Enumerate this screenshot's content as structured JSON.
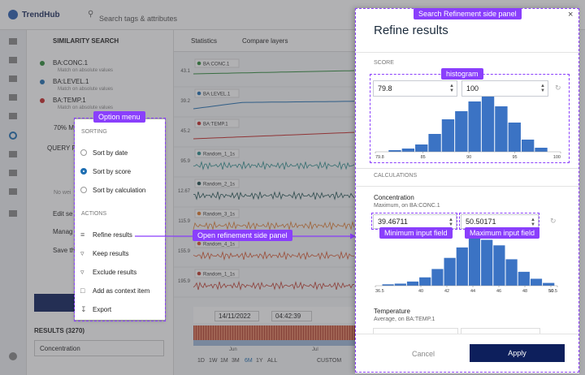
{
  "app": {
    "brand": "TrendHub",
    "search": "Search tags & attributes",
    "sidebar": {
      "title": "SIMILARITY SEARCH",
      "tags": [
        {
          "name": "BA:CONC.1",
          "note": "Match on absolute values",
          "color": "#2e8b3a"
        },
        {
          "name": "BA:LEVEL.1",
          "note": "Match on absolute values",
          "color": "#1f6fb2"
        },
        {
          "name": "BA:TEMP.1",
          "note": "Match on absolute values",
          "color": "#c62828"
        }
      ],
      "match": "70% M",
      "query": "QUERY P",
      "weights": "No wei",
      "links": [
        "Edit se",
        "Manag",
        "Save th"
      ],
      "results": "RESULTS (3270)",
      "sort_field": "Concentration"
    },
    "toolbar": {
      "statistics": "Statistics",
      "compare": "Compare layers"
    },
    "trends": [
      {
        "label": "BA:CONC.1",
        "tick": 43.1,
        "color": "#2e8b3a"
      },
      {
        "label": "BA:LEVEL.1",
        "tick": 39.2,
        "color": "#1f6fb2"
      },
      {
        "label": "BA:TEMP.1",
        "tick": 45.2,
        "color": "#c62828"
      },
      {
        "label": "Random_1_1s",
        "tick": 95.9,
        "color": "#2a8c8c"
      },
      {
        "label": "Random_2_1s",
        "tick": 12.67,
        "color": "#1d4f4f"
      },
      {
        "label": "Random_3_1s",
        "tick": 115.9,
        "color": "#e07a2e"
      },
      {
        "label": "Random_4_1s",
        "tick": 155.9,
        "color": "#d9542b"
      },
      {
        "label": "Random_1_1s",
        "tick": 195.9,
        "color": "#c0392b"
      }
    ],
    "timebar": {
      "date": "14/11/2022",
      "time": "04:42:39",
      "months": [
        "Jun",
        "Jul"
      ],
      "ranges": [
        "1D",
        "1W",
        "1M",
        "3M",
        "6M",
        "1Y",
        "ALL"
      ],
      "custom": "CUSTOM"
    }
  },
  "option_menu": {
    "sorting": "SORTING",
    "sort_options": [
      "Sort by date",
      "Sort by score",
      "Sort by calculation"
    ],
    "actions": "ACTIONS",
    "action_items": [
      "Refine results",
      "Keep results",
      "Exclude results",
      "Add as context item",
      "Export"
    ]
  },
  "panel": {
    "title": "Refine results",
    "score": {
      "label": "SCORE",
      "min": 79.8,
      "max": 100,
      "histogram": {
        "bins": [
          81.2,
          82.65,
          84.1,
          85.55,
          87.0,
          88.45,
          89.9,
          91.35,
          92.8,
          94.25,
          95.7,
          97.15,
          98.6
        ],
        "counts": [
          2,
          4,
          9,
          22,
          40,
          50,
          62,
          68,
          56,
          36,
          15,
          5
        ],
        "xlim": [
          79.8,
          100
        ],
        "xticks": [
          79.8,
          85,
          90,
          95,
          100
        ]
      }
    },
    "calculations": "CALCULATIONS",
    "concentration": {
      "name": "Concentration",
      "desc": "Maximum, on BA:CONC.1",
      "min": 39.46711,
      "max": 50.50171,
      "histogram": {
        "bins": [
          37.0,
          37.95,
          38.9,
          39.85,
          40.8,
          41.75,
          42.7,
          43.65,
          44.6,
          45.55,
          46.5,
          47.45,
          48.4,
          49.35,
          50.3
        ],
        "counts": [
          2,
          3,
          6,
          12,
          24,
          40,
          55,
          70,
          66,
          58,
          38,
          20,
          10,
          4
        ],
        "xlim": [
          36.5,
          50.5
        ],
        "xticks": [
          36.5,
          40,
          42,
          44,
          46,
          48,
          50,
          50.5
        ]
      }
    },
    "temperature": {
      "name": "Temperature",
      "desc": "Average, on BA:TEMP.1"
    },
    "cancel": "Cancel",
    "apply": "Apply"
  },
  "annotations": {
    "panel": "Search Refinement side panel",
    "histogram": "histogram",
    "option_menu": "Option menu",
    "open_panel": "Open refinement side panel",
    "min_input": "Minimum input field",
    "max_input": "Maximum input field"
  }
}
